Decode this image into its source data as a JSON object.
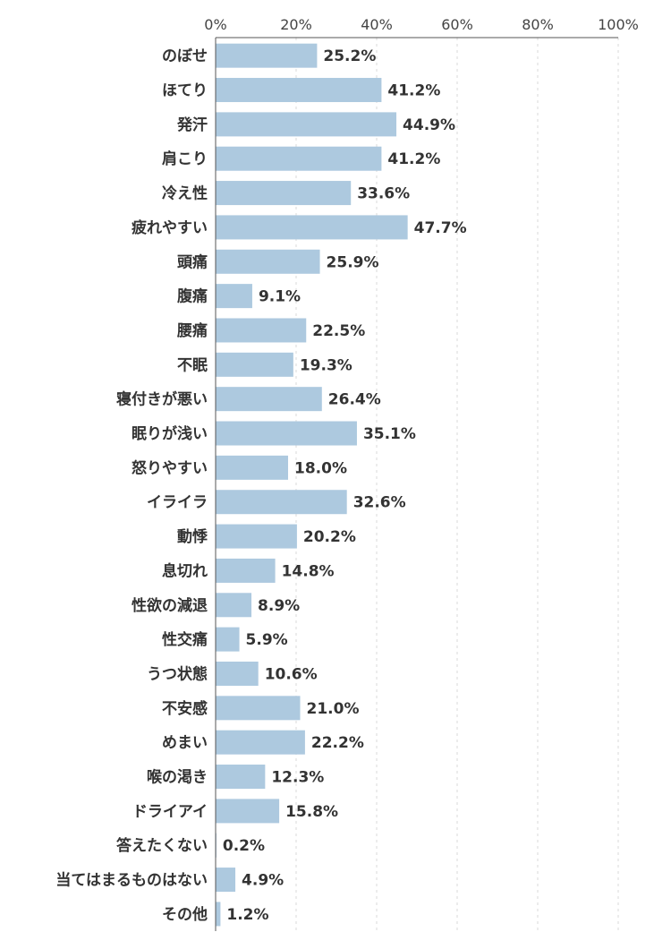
{
  "chart_data": {
    "type": "bar",
    "orientation": "horizontal",
    "categories": [
      "のぼせ",
      "ほてり",
      "発汗",
      "肩こり",
      "冷え性",
      "疲れやすい",
      "頭痛",
      "腹痛",
      "腰痛",
      "不眠",
      "寝付きが悪い",
      "眠りが浅い",
      "怒りやすい",
      "イライラ",
      "動悸",
      "息切れ",
      "性欲の減退",
      "性交痛",
      "うつ状態",
      "不安感",
      "めまい",
      "喉の渇き",
      "ドライアイ",
      "答えたくない",
      "当てはまるものはない",
      "その他"
    ],
    "values": [
      25.2,
      41.2,
      44.9,
      41.2,
      33.6,
      47.7,
      25.9,
      9.1,
      22.5,
      19.3,
      26.4,
      35.1,
      18.0,
      32.6,
      20.2,
      14.8,
      8.9,
      5.9,
      10.6,
      21.0,
      22.2,
      12.3,
      15.8,
      0.2,
      4.9,
      1.2
    ],
    "value_labels": [
      "25.2%",
      "41.2%",
      "44.9%",
      "41.2%",
      "33.6%",
      "47.7%",
      "25.9%",
      "9.1%",
      "22.5%",
      "19.3%",
      "26.4%",
      "35.1%",
      "18.0%",
      "32.6%",
      "20.2%",
      "14.8%",
      "8.9%",
      "5.9%",
      "10.6%",
      "21.0%",
      "22.2%",
      "12.3%",
      "15.8%",
      "0.2%",
      "4.9%",
      "1.2%"
    ],
    "xlim": [
      0,
      100
    ],
    "x_ticks": [
      0,
      20,
      40,
      60,
      80,
      100
    ],
    "x_tick_labels": [
      "0%",
      "20%",
      "40%",
      "60%",
      "80%",
      "100%"
    ],
    "axis_position": "top",
    "grid": "vertical dashed",
    "bar_color": "#adc9df",
    "axis_color": "#555555",
    "grid_color": "#d8d8d8"
  }
}
